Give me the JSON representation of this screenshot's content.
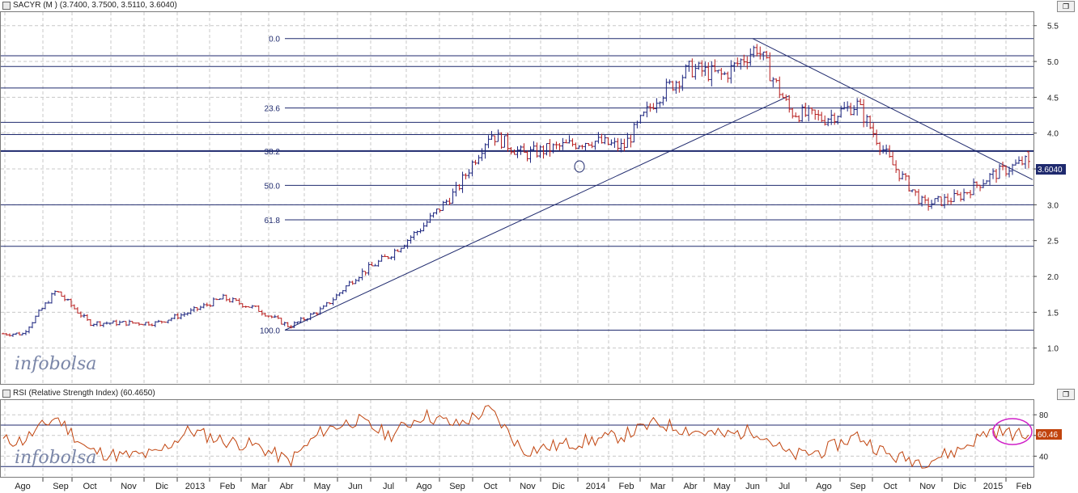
{
  "main_panel": {
    "header": "SACYR (M ) (3.7400, 3.7500, 3.5110, 3.6040)",
    "watermark": "infobolsa",
    "last_price_label": "3.6040",
    "restore_icon": "window-restore-icon"
  },
  "rsi_panel": {
    "header": "RSI (Relative Strength Index) (60.4650)",
    "watermark": "infobolsa",
    "last_value_label": "60.46",
    "restore_icon": "window-restore-icon"
  },
  "x_axis": {
    "labels": [
      "Ago",
      "Sep",
      "Oct",
      "Nov",
      "Dic",
      "2013",
      "Feb",
      "Mar",
      "Abr",
      "May",
      "Jun",
      "Jul",
      "Ago",
      "Sep",
      "Oct",
      "Nov",
      "Dic",
      "2014",
      "Feb",
      "Mar",
      "Abr",
      "May",
      "Jun",
      "Jul",
      "Ago",
      "Sep",
      "Oct",
      "Nov",
      "Dic",
      "2015",
      "Feb"
    ]
  },
  "colors": {
    "bars": "#1a237e",
    "bars_down": "#b71c1c",
    "fib_lines": "#1f2a6e",
    "trendline": "#1f2a6e",
    "rsi_line": "#c1440e",
    "rsi_last_badge": "#c1440e",
    "price_badge": "#1f2a6e",
    "highlight_circle": "#d020c8",
    "grid": "#c8c8c8"
  },
  "chart_data": [
    {
      "type": "line",
      "title": "SACYR (M ) (3.7400, 3.7500, 3.5110, 3.6040)",
      "subtype": "ohlc-bars",
      "ohlc_last": {
        "open": 3.74,
        "high": 3.75,
        "low": 3.511,
        "close": 3.604
      },
      "ylim": [
        0.5,
        5.7
      ],
      "y_ticks": [
        1.0,
        1.5,
        2.0,
        2.5,
        3.0,
        3.5,
        4.0,
        4.5,
        5.0,
        5.5
      ],
      "x_categories": [
        "Ago",
        "Sep",
        "Oct",
        "Nov",
        "Dic",
        "2013",
        "Feb",
        "Mar",
        "Abr",
        "May",
        "Jun",
        "Jul",
        "Ago",
        "Sep",
        "Oct",
        "Nov",
        "Dic",
        "2014",
        "Feb",
        "Mar",
        "Abr",
        "May",
        "Jun",
        "Jul",
        "Ago",
        "Sep",
        "Oct",
        "Nov",
        "Dic",
        "2015",
        "Feb"
      ],
      "series": [
        {
          "values_monthly_approx": [
            1.2,
            1.8,
            1.35,
            1.35,
            1.35,
            1.5,
            1.7,
            1.55,
            1.3,
            1.55,
            2.0,
            2.3,
            2.7,
            3.2,
            4.0,
            3.7,
            3.8,
            3.9,
            3.8,
            4.5,
            4.9,
            4.8,
            5.2,
            4.3,
            4.2,
            4.4,
            3.6,
            3.0,
            3.1,
            3.4,
            3.6
          ]
        }
      ],
      "fibonacci_levels": [
        {
          "label": "0.0",
          "value": 5.32
        },
        {
          "label": "23.6",
          "value": 4.35
        },
        {
          "label": "38.2",
          "value": 3.75
        },
        {
          "label": "50.0",
          "value": 3.27
        },
        {
          "label": "61.8",
          "value": 2.79
        },
        {
          "label": "100.0",
          "value": 1.25
        }
      ],
      "extra_horizontal_levels": [
        5.08,
        4.93,
        4.63,
        4.15,
        3.98,
        3.0,
        2.42
      ],
      "trendlines": [
        {
          "from": {
            "x": "Abr 2013",
            "y": 1.25
          },
          "to": {
            "x": "Jul 2014",
            "y": 4.52
          }
        },
        {
          "from": {
            "x": "Jun 2014",
            "y": 5.32
          },
          "to": {
            "x": "Feb 2015",
            "y": 3.35
          }
        }
      ],
      "last_price": 3.604
    },
    {
      "type": "line",
      "title": "RSI (Relative Strength Index) (60.4650)",
      "ylim": [
        20,
        95
      ],
      "y_ticks": [
        40,
        60,
        80
      ],
      "reference_lines": [
        70,
        30
      ],
      "x_categories": [
        "Ago",
        "Sep",
        "Oct",
        "Nov",
        "Dic",
        "2013",
        "Feb",
        "Mar",
        "Abr",
        "May",
        "Jun",
        "Jul",
        "Ago",
        "Sep",
        "Oct",
        "Nov",
        "Dic",
        "2014",
        "Feb",
        "Mar",
        "Abr",
        "May",
        "Jun",
        "Jul",
        "Ago",
        "Sep",
        "Oct",
        "Nov",
        "Dic",
        "2015",
        "Feb"
      ],
      "series": [
        {
          "values_monthly_approx": [
            55,
            78,
            45,
            40,
            42,
            65,
            55,
            50,
            35,
            65,
            75,
            60,
            80,
            70,
            85,
            45,
            50,
            55,
            60,
            72,
            65,
            60,
            65,
            40,
            45,
            60,
            40,
            35,
            45,
            65,
            60
          ]
        }
      ],
      "last_value": 60.465
    }
  ]
}
